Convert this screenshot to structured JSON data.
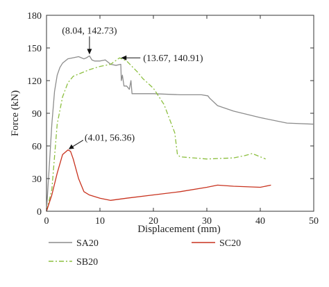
{
  "chart_data": {
    "type": "line",
    "xlabel": "Displacement (mm)",
    "ylabel": "Force (kN)",
    "xlim": [
      0,
      50
    ],
    "ylim": [
      0,
      180
    ],
    "xticks": [
      "0",
      "10",
      "20",
      "30",
      "40",
      "50"
    ],
    "yticks": [
      "0",
      "30",
      "60",
      "90",
      "120",
      "150",
      "180"
    ],
    "grid": false,
    "legend_position": "bottom",
    "series": [
      {
        "name": "SA20",
        "color": "#8c8c8c",
        "style": "solid",
        "x": [
          0,
          0.5,
          1,
          1.5,
          2,
          2.5,
          3,
          3.5,
          4,
          5,
          6,
          7,
          7.5,
          8.04,
          8.5,
          9,
          10,
          11,
          12,
          13,
          13.9,
          14.0,
          14.2,
          14.5,
          15,
          15.5,
          15.8,
          16,
          16.5,
          17,
          20,
          25,
          29,
          30.2,
          30.5,
          32,
          35,
          40,
          45,
          50
        ],
        "y": [
          0,
          40,
          80,
          110,
          125,
          132,
          136,
          138,
          140,
          141,
          142,
          140,
          141,
          142.73,
          139,
          138,
          138,
          139,
          135,
          134,
          135,
          120,
          125,
          115,
          115,
          112,
          120,
          108,
          108,
          108,
          108,
          107,
          107,
          106,
          104,
          97,
          92,
          86,
          81,
          80
        ]
      },
      {
        "name": "SB20",
        "color": "#8cbf3f",
        "style": "dash-dot",
        "x": [
          0,
          1,
          1.5,
          2,
          3,
          4,
          5,
          6,
          7,
          8,
          10,
          12,
          13.67,
          15,
          16,
          17,
          18,
          20,
          22,
          23,
          24,
          24.5,
          25,
          30,
          35,
          37,
          38.5,
          40,
          41
        ],
        "y": [
          0,
          20,
          50,
          80,
          105,
          118,
          124,
          126,
          128,
          130,
          133,
          135,
          140.91,
          138,
          133,
          128,
          122,
          113,
          98,
          85,
          72,
          52,
          50,
          48,
          49,
          51,
          53,
          50,
          48
        ]
      },
      {
        "name": "SC20",
        "color": "#c8321e",
        "style": "solid",
        "x": [
          0,
          1,
          2,
          3,
          4.01,
          4.5,
          5,
          6,
          7,
          8,
          10,
          12,
          15,
          20,
          25,
          30,
          32,
          35,
          40,
          42
        ],
        "y": [
          0,
          15,
          35,
          52,
          56.36,
          55,
          48,
          30,
          18,
          15,
          12,
          10,
          12,
          15,
          18,
          22,
          24,
          23,
          22,
          24
        ]
      }
    ],
    "annotations": [
      {
        "text": "(8.04, 142.73)",
        "x": 8.04,
        "y": 142.73
      },
      {
        "text": "(13.67, 140.91)",
        "x": 13.67,
        "y": 140.91
      },
      {
        "text": "(4.01, 56.36)",
        "x": 4.01,
        "y": 56.36
      }
    ]
  }
}
